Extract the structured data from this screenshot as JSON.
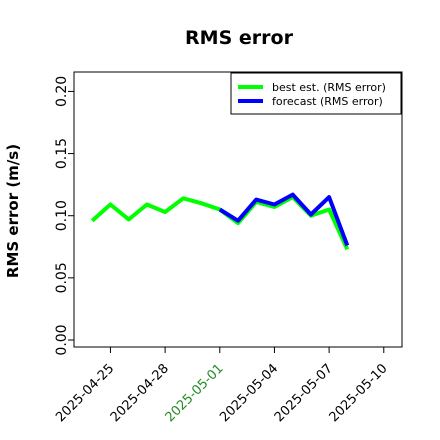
{
  "chart_data": {
    "type": "line",
    "title": "RMS error",
    "xlabel": "",
    "ylabel": "RMS error (m/s)",
    "ylim": [
      0.0,
      0.21
    ],
    "yticks": [
      0.0,
      0.05,
      0.1,
      0.15,
      0.2
    ],
    "ytick_labels": [
      "0.00",
      "0.05",
      "0.10",
      "0.15",
      "0.20"
    ],
    "xlim": [
      "2025-04-23",
      "2025-05-11"
    ],
    "xticks": [
      "2025-04-25",
      "2025-04-28",
      "2025-05-01",
      "2025-05-04",
      "2025-05-07",
      "2025-05-10"
    ],
    "xtick_labels": [
      "2025-04-25",
      "2025-04-28",
      "2025-05-01",
      "2025-05-04",
      "2025-05-07",
      "2025-05-10"
    ],
    "highlight_tick": "2025-05-01",
    "highlight_color": "#228b22",
    "grid": false,
    "legend_position": "top-right",
    "series": [
      {
        "name": "best est. (RMS error)",
        "color": "#00ff00",
        "x": [
          "2025-04-24",
          "2025-04-25",
          "2025-04-26",
          "2025-04-27",
          "2025-04-28",
          "2025-04-29",
          "2025-04-30",
          "2025-05-01",
          "2025-05-02",
          "2025-05-03",
          "2025-05-04",
          "2025-05-05",
          "2025-05-06",
          "2025-05-07",
          "2025-05-08"
        ],
        "values": [
          0.096,
          0.109,
          0.097,
          0.109,
          0.103,
          0.114,
          0.11,
          0.105,
          0.094,
          0.111,
          0.107,
          0.115,
          0.1,
          0.105,
          0.073
        ]
      },
      {
        "name": "forecast (RMS error)",
        "color": "#0000ff",
        "x": [
          "2025-05-01",
          "2025-05-02",
          "2025-05-03",
          "2025-05-04",
          "2025-05-05",
          "2025-05-06",
          "2025-05-07",
          "2025-05-08"
        ],
        "values": [
          0.105,
          0.096,
          0.113,
          0.109,
          0.117,
          0.101,
          0.115,
          0.076
        ]
      }
    ]
  }
}
